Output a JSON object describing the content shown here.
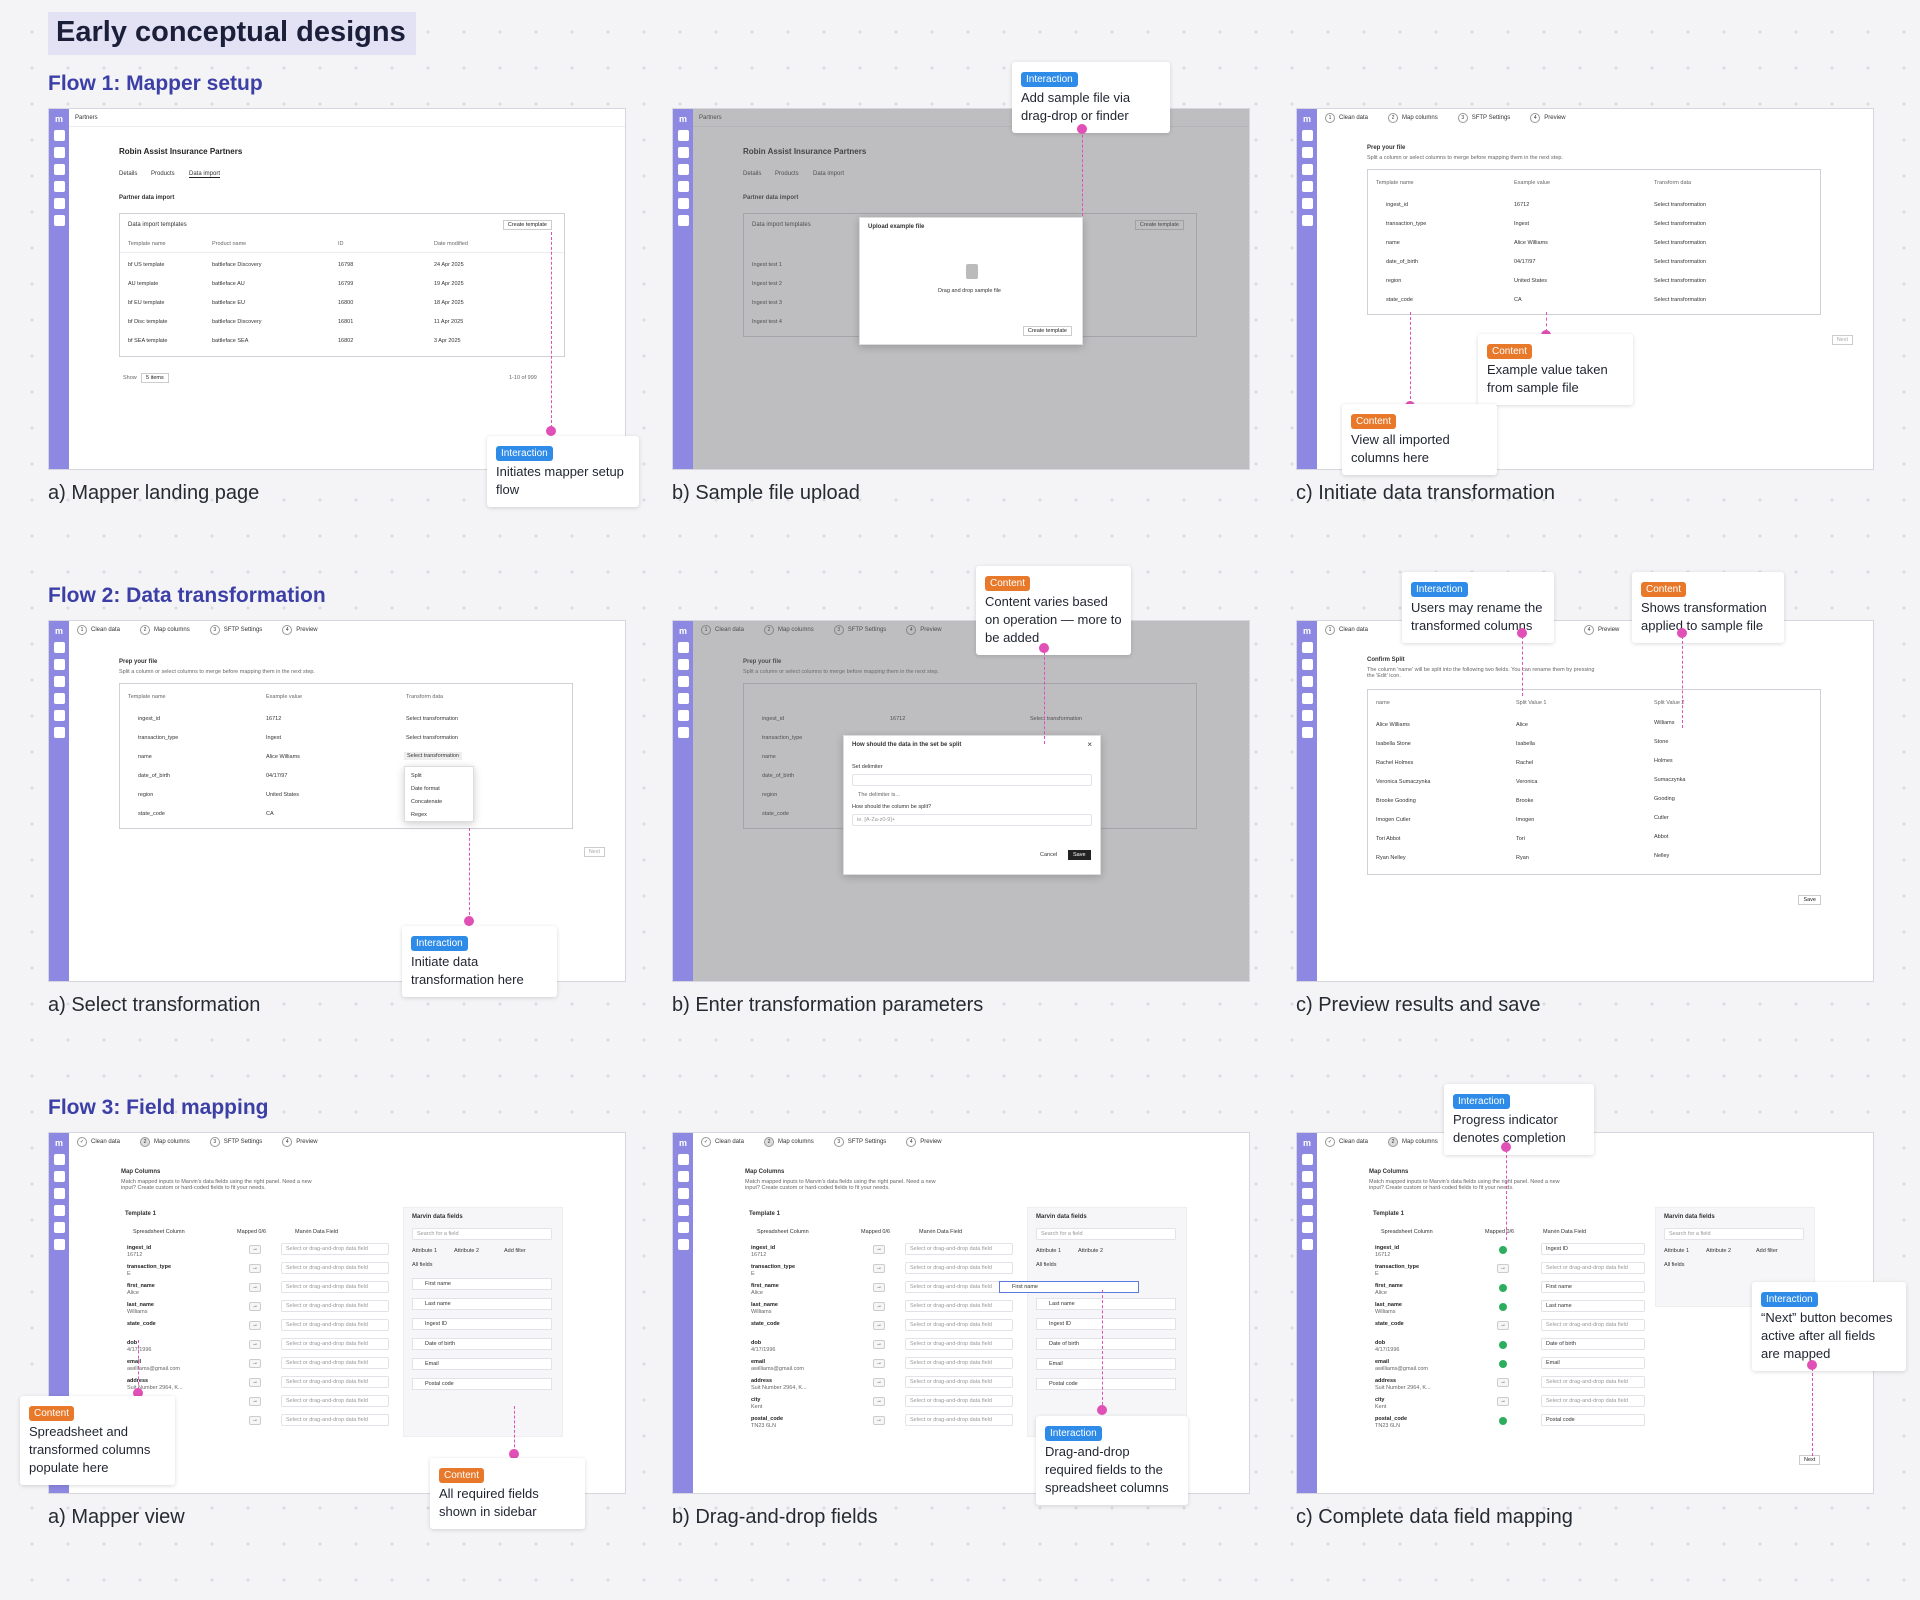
{
  "page_title": "Early conceptual designs",
  "flows": [
    {
      "title": "Flow 1: Mapper setup",
      "captions": [
        "a) Mapper landing page",
        "b) Sample file upload",
        "c) Initiate data transformation"
      ]
    },
    {
      "title": "Flow 2: Data transformation",
      "captions": [
        "a) Select transformation",
        "b) Enter transformation parameters",
        "c) Preview results and save"
      ]
    },
    {
      "title": "Flow 3: Field mapping",
      "captions": [
        "a) Mapper view",
        "b) Drag-and-drop fields",
        "c) Complete data field mapping"
      ]
    }
  ],
  "callouts": {
    "f1a": {
      "tag": "Interaction",
      "text": "Initiates mapper setup flow"
    },
    "f1b": {
      "tag": "Interaction",
      "text": "Add sample file via drag-drop or finder"
    },
    "f1c1": {
      "tag": "Content",
      "text": "Example value taken from sample file"
    },
    "f1c2": {
      "tag": "Content",
      "text": "View all imported columns here"
    },
    "f2a": {
      "tag": "Interaction",
      "text": "Initiate data transformation here"
    },
    "f2b": {
      "tag": "Content",
      "text": "Content varies based on operation — more to be added"
    },
    "f2c1": {
      "tag": "Interaction",
      "text": "Users may rename the transformed columns"
    },
    "f2c2": {
      "tag": "Content",
      "text": "Shows transformation applied to sample file"
    },
    "f3a1": {
      "tag": "Content",
      "text": "Spreadsheet and transformed columns populate here"
    },
    "f3a2": {
      "tag": "Content",
      "text": "All required fields shown in sidebar"
    },
    "f3b": {
      "tag": "Interaction",
      "text": "Drag-and-drop required fields to the spreadsheet columns"
    },
    "f3c1": {
      "tag": "Interaction",
      "text": "Progress indicator denotes completion"
    },
    "f3c2": {
      "tag": "Interaction",
      "text": "“Next” button becomes active after all fields are mapped"
    }
  },
  "mock": {
    "rail_logo": "m",
    "breadcrumb": "Partners",
    "partner_name": "Robin Assist Insurance Partners",
    "tabs": [
      "Details",
      "Products",
      "Data import"
    ],
    "section": "Partner data import",
    "templates_title": "Data import templates",
    "create_template": "Create template",
    "template_cols": [
      "Template name",
      "Product name",
      "ID",
      "Date modified"
    ],
    "template_rows": [
      [
        "bf US template",
        "battleface Discovery",
        "16798",
        "24 Apr 2025"
      ],
      [
        "AU template",
        "battleface AU",
        "16799",
        "19 Apr 2025"
      ],
      [
        "bf EU template",
        "battleface EU",
        "16800",
        "18 Apr 2025"
      ],
      [
        "bf Disc template",
        "battleface Discovery",
        "16801",
        "11 Apr 2025"
      ],
      [
        "bf SEA template",
        "battleface SEA",
        "16802",
        "3 Apr 2025"
      ]
    ],
    "show": "Show",
    "show_value": "5 items",
    "pagination": "1-10 of 999",
    "ingest_rows": [
      "Ingest test 1",
      "Ingest test 2",
      "Ingest test 3",
      "Ingest test 4"
    ],
    "upload_title": "Upload example file",
    "upload_hint": "Drag and drop sample file",
    "steps": [
      "Clean data",
      "Map columns",
      "SFTP Settings",
      "Preview"
    ],
    "prep_title": "Prep your file",
    "prep_sub": "Split a column or select columns to merge before mapping them in the next step.",
    "prep_cols": [
      "Template name",
      "Example value",
      "Transform data"
    ],
    "prep_rows": [
      [
        "ingest_id",
        "16712"
      ],
      [
        "transaction_type",
        "Ingest"
      ],
      [
        "name",
        "Alice Williams"
      ],
      [
        "date_of_birth",
        "04/17/97"
      ],
      [
        "region",
        "United States"
      ],
      [
        "state_code",
        "CA"
      ]
    ],
    "select_transformation": "Select transformation",
    "dropdown_options": [
      "Split",
      "Date format",
      "Concatenate",
      "Regex"
    ],
    "next": "Next",
    "dialog_title": "How should the data in the set be split",
    "set_delimiter": "Set delimiter",
    "delimiter_check": "The delimiter is...",
    "column_split": "How should the column be split?",
    "regex_placeholder": "ie. [A-Za-z0-9]+",
    "cancel": "Cancel",
    "save": "Save",
    "confirm_title": "Confirm Split",
    "confirm_sub": "The column 'name' will be split into the following two fields. You can rename them by pressing the 'Edit' icon.",
    "split_cols": [
      "name",
      "Split Value 1",
      "Split Value 2"
    ],
    "split_rows": [
      [
        "Alice Williams",
        "Alice",
        "Williams"
      ],
      [
        "Isabella Stone",
        "Isabella",
        "Stone"
      ],
      [
        "Rachel Holmes",
        "Rachel",
        "Holmes"
      ],
      [
        "Veronica Sumaczynka",
        "Veronica",
        "Sumaczynka"
      ],
      [
        "Brooke Gooding",
        "Brooke",
        "Gooding"
      ],
      [
        "Imogen Cutler",
        "Imogen",
        "Cutler"
      ],
      [
        "Tori Abbot",
        "Tori",
        "Abbot"
      ],
      [
        "Ryan Nelley",
        "Ryan",
        "Nelley"
      ]
    ],
    "map_title": "Map Columns",
    "map_sub": "Match mapped inputs to Marvin's data fields using the right panel. Need a new input? Create custom or hard-coded fields to fit your needs.",
    "template1": "Template 1",
    "map_cols": [
      "Spreadsheet Column",
      "Mapped 0/6",
      "Marvin Data Field"
    ],
    "map_rows": [
      [
        "ingest_id",
        "16712"
      ],
      [
        "transaction_type",
        "E"
      ],
      [
        "first_name",
        "Alice"
      ],
      [
        "last_name",
        "Williams"
      ],
      [
        "state_code",
        ""
      ],
      [
        "dob",
        "4/17/1996"
      ],
      [
        "email",
        "awilliams@gmail.com"
      ],
      [
        "address",
        "Suit Number 2964, K..."
      ],
      [
        "city",
        "Kent"
      ],
      [
        "postal_code",
        "TN23 6LN"
      ]
    ],
    "drop_placeholder": "Select or drag-and-drop data field",
    "marvin_fields": "Marvin data fields",
    "search_field": "Search for a field",
    "attrs": [
      "Attribute 1",
      "Attribute 2",
      "Add filter"
    ],
    "all_fields": "All fields",
    "fields": [
      "First name",
      "Last name",
      "Ingest ID",
      "Date of birth",
      "Email",
      "Postal code"
    ]
  }
}
